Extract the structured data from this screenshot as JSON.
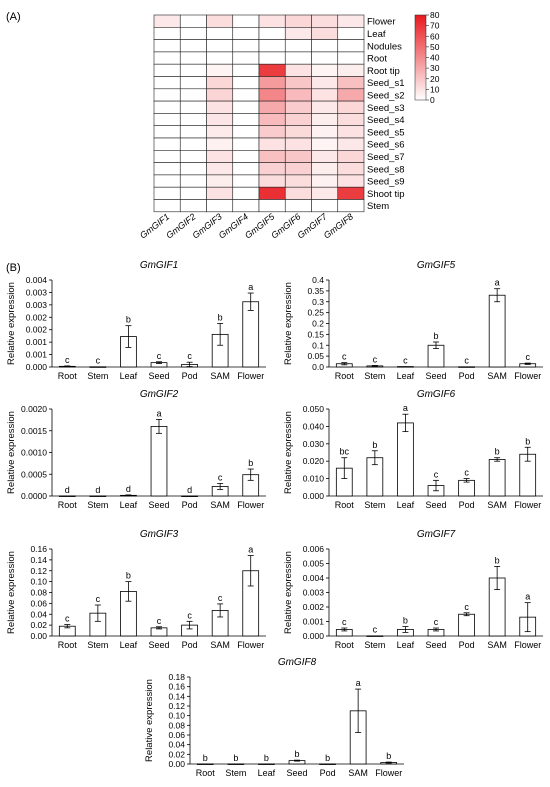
{
  "panels": {
    "a": "(A)",
    "b": "(B)"
  },
  "heatmap": {
    "rows": [
      "Flower",
      "Leaf",
      "Nodules",
      "Root",
      "Root tip",
      "Seed_s1",
      "Seed_s2",
      "Seed_s3",
      "Seed_s4",
      "Seed_s5",
      "Seed_s6",
      "Seed_s7",
      "Seed_s8",
      "Seed_s9",
      "Shoot tip",
      "Stem"
    ],
    "cols": [
      "GmGIF1",
      "GmGIF2",
      "GmGIF3",
      "GmGIF4",
      "GmGIF5",
      "GmGIF6",
      "GmGIF7",
      "GmGIF8"
    ],
    "colorbar": {
      "ticks": [
        0,
        10,
        20,
        30,
        40,
        50,
        60,
        70,
        80
      ],
      "min": 0,
      "max": 80,
      "low_color": "#ffffff",
      "high_color": "#e8191e"
    }
  },
  "chart_data": [
    {
      "type": "heatmap",
      "rows": [
        "Flower",
        "Leaf",
        "Nodules",
        "Root",
        "Root tip",
        "Seed_s1",
        "Seed_s2",
        "Seed_s3",
        "Seed_s4",
        "Seed_s5",
        "Seed_s6",
        "Seed_s7",
        "Seed_s8",
        "Seed_s9",
        "Shoot tip",
        "Stem"
      ],
      "cols": [
        "GmGIF1",
        "GmGIF2",
        "GmGIF3",
        "GmGIF4",
        "GmGIF5",
        "GmGIF6",
        "GmGIF7",
        "GmGIF8"
      ],
      "values": [
        [
          8,
          0,
          12,
          0,
          10,
          14,
          12,
          8
        ],
        [
          0,
          0,
          0,
          0,
          0,
          8,
          12,
          0
        ],
        [
          0,
          0,
          0,
          0,
          0,
          0,
          0,
          0
        ],
        [
          0,
          0,
          0,
          0,
          0,
          0,
          0,
          0
        ],
        [
          0,
          0,
          4,
          0,
          68,
          10,
          4,
          6
        ],
        [
          0,
          0,
          14,
          0,
          35,
          20,
          8,
          22
        ],
        [
          0,
          0,
          15,
          0,
          42,
          24,
          10,
          30
        ],
        [
          0,
          0,
          10,
          0,
          30,
          18,
          8,
          14
        ],
        [
          0,
          0,
          9,
          0,
          24,
          16,
          6,
          12
        ],
        [
          0,
          0,
          7,
          0,
          18,
          13,
          5,
          10
        ],
        [
          0,
          0,
          5,
          0,
          10,
          10,
          4,
          8
        ],
        [
          0,
          0,
          10,
          0,
          22,
          20,
          8,
          14
        ],
        [
          0,
          0,
          8,
          0,
          16,
          16,
          6,
          12
        ],
        [
          0,
          0,
          6,
          0,
          12,
          12,
          5,
          10
        ],
        [
          0,
          0,
          10,
          0,
          72,
          12,
          8,
          68
        ],
        [
          0,
          0,
          0,
          0,
          0,
          0,
          0,
          0
        ]
      ],
      "colorbar_range": [
        0,
        80
      ]
    },
    {
      "type": "bar",
      "title": "GmGIF1",
      "ylabel": "Relative expression",
      "categories": [
        "Root",
        "Stem",
        "Leaf",
        "Seed",
        "Pod",
        "SAM",
        "Flower"
      ],
      "values": [
        3e-05,
        1e-05,
        0.0014,
        0.0002,
        0.00012,
        0.0015,
        0.003
      ],
      "errors": [
        2e-05,
        1e-05,
        0.0005,
        4e-05,
        0.0001,
        0.0005,
        0.0004
      ],
      "letters": [
        "c",
        "c",
        "b",
        "c",
        "c",
        "b",
        "a"
      ],
      "ylim": [
        0,
        0.004
      ],
      "yticks": [
        "0.000",
        "0.001",
        "0.001",
        "0.002",
        "0.002",
        "0.003",
        "0.003",
        "0.004"
      ]
    },
    {
      "type": "bar",
      "title": "GmGIF5",
      "ylabel": "Relative expression",
      "categories": [
        "Root",
        "Stem",
        "Leaf",
        "Seed",
        "Pod",
        "SAM",
        "Flower"
      ],
      "values": [
        0.015,
        0.005,
        0.002,
        0.1,
        0.001,
        0.33,
        0.015
      ],
      "errors": [
        0.005,
        0.002,
        0.001,
        0.015,
        0.001,
        0.03,
        0.003
      ],
      "letters": [
        "c",
        "c",
        "c",
        "b",
        "c",
        "a",
        "c"
      ],
      "ylim": [
        0,
        0.4
      ],
      "yticks": [
        "0.0",
        "0.05",
        "0.1",
        "0.15",
        "0.2",
        "0.25",
        "0.3",
        "0.35",
        "0.4"
      ]
    },
    {
      "type": "bar",
      "title": "GmGIF2",
      "ylabel": "Relative expression",
      "categories": [
        "Root",
        "Stem",
        "Leaf",
        "Seed",
        "Pod",
        "SAM",
        "Flower"
      ],
      "values": [
        2e-06,
        2e-06,
        1.5e-05,
        0.0016,
        1e-06,
        0.00022,
        0.00049
      ],
      "errors": [
        2e-06,
        1e-06,
        1e-05,
        0.00016,
        1e-06,
        7e-05,
        0.00013
      ],
      "letters": [
        "d",
        "d",
        "d",
        "a",
        "d",
        "c",
        "b"
      ],
      "ylim": [
        0,
        0.002
      ],
      "yticks": [
        "0.0000",
        "0.0005",
        "0.0010",
        "0.0015",
        "0.0020"
      ]
    },
    {
      "type": "bar",
      "title": "GmGIF6",
      "ylabel": "Relative expression",
      "categories": [
        "Root",
        "Stem",
        "Leaf",
        "Seed",
        "Pod",
        "SAM",
        "Flower"
      ],
      "values": [
        0.016,
        0.022,
        0.042,
        0.006,
        0.009,
        0.021,
        0.024
      ],
      "errors": [
        0.006,
        0.004,
        0.005,
        0.003,
        0.001,
        0.001,
        0.004
      ],
      "letters": [
        "bc",
        "b",
        "a",
        "c",
        "c",
        "b",
        "b"
      ],
      "ylim": [
        0,
        0.05
      ],
      "yticks": [
        "0.000",
        "0.010",
        "0.020",
        "0.030",
        "0.040",
        "0.050"
      ]
    },
    {
      "type": "bar",
      "title": "GmGIF3",
      "ylabel": "Relative expression",
      "categories": [
        "Root",
        "Stem",
        "Leaf",
        "Seed",
        "Pod",
        "SAM",
        "Flower"
      ],
      "values": [
        0.018,
        0.042,
        0.082,
        0.015,
        0.02,
        0.047,
        0.12
      ],
      "errors": [
        0.003,
        0.015,
        0.018,
        0.002,
        0.007,
        0.012,
        0.028
      ],
      "letters": [
        "c",
        "c",
        "b",
        "c",
        "c",
        "c",
        "a"
      ],
      "ylim": [
        0,
        0.16
      ],
      "yticks": [
        "0.00",
        "0.02",
        "0.04",
        "0.06",
        "0.08",
        "0.10",
        "0.12",
        "0.14",
        "0.16"
      ]
    },
    {
      "type": "bar",
      "title": "GmGIF7",
      "ylabel": "Relative expression",
      "categories": [
        "Root",
        "Stem",
        "Leaf",
        "Seed",
        "Pod",
        "SAM",
        "Flower"
      ],
      "values": [
        0.00045,
        1e-05,
        0.00045,
        0.00045,
        0.0015,
        0.004,
        0.0013
      ],
      "errors": [
        0.0001,
        1e-05,
        0.0002,
        0.0001,
        0.0001,
        0.0008,
        0.001
      ],
      "letters": [
        "c",
        "c",
        "b",
        "c",
        "c",
        "b",
        "a"
      ],
      "ylim": [
        0,
        0.006
      ],
      "yticks": [
        "0.000",
        "0.001",
        "0.002",
        "0.003",
        "0.004",
        "0.005",
        "0.006"
      ]
    },
    {
      "type": "bar",
      "title": "GmGIF8",
      "ylabel": "Relative expression",
      "categories": [
        "Root",
        "Stem",
        "Leaf",
        "Seed",
        "Pod",
        "SAM",
        "Flower"
      ],
      "values": [
        0.0002,
        0.0002,
        0.0002,
        0.007,
        0.0002,
        0.11,
        0.003
      ],
      "errors": [
        0.0001,
        0.0001,
        0.0001,
        0.001,
        0.0001,
        0.045,
        0.001
      ],
      "letters": [
        "b",
        "b",
        "b",
        "b",
        "b",
        "a",
        "b"
      ],
      "ylim": [
        0,
        0.18
      ],
      "yticks": [
        "0.00",
        "0.02",
        "0.04",
        "0.06",
        "0.08",
        "0.10",
        "0.12",
        "0.14",
        "0.16",
        "0.18"
      ]
    }
  ]
}
